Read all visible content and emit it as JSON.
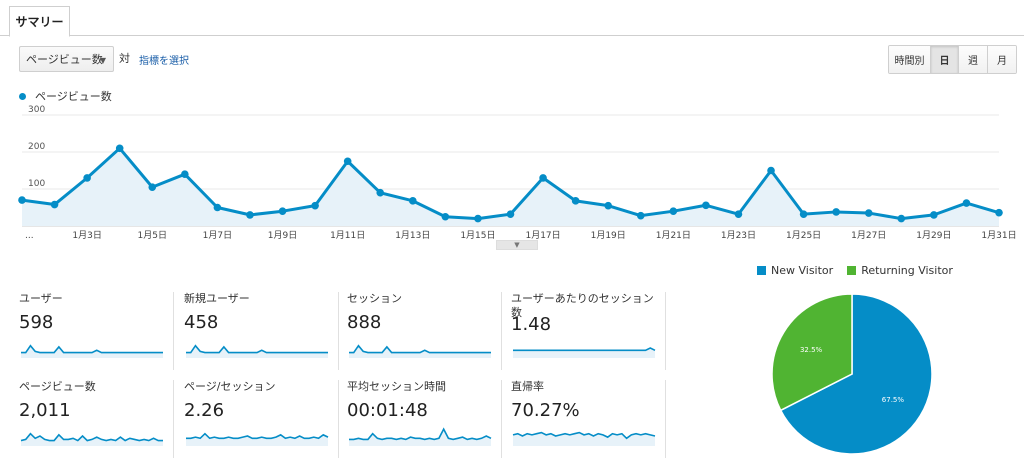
{
  "tabs": {
    "summary": "サマリー"
  },
  "toolbar": {
    "metric_select": "ページビュー数",
    "vs": "対",
    "choose_metric": "指標を選択",
    "periods": [
      "時間別",
      "日",
      "週",
      "月"
    ],
    "active_period": "日"
  },
  "chart_data": [
    {
      "type": "line",
      "series": [
        {
          "name": "ページビュー数",
          "x": [
            "1/1",
            "1/2",
            "1/3",
            "1/4",
            "1/5",
            "1/6",
            "1/7",
            "1/8",
            "1/9",
            "1/10",
            "1/11",
            "1/12",
            "1/13",
            "1/14",
            "1/15",
            "1/16",
            "1/17",
            "1/18",
            "1/19",
            "1/20",
            "1/21",
            "1/22",
            "1/23",
            "1/24",
            "1/25",
            "1/26",
            "1/27",
            "1/28",
            "1/29",
            "1/30",
            "1/31"
          ],
          "values": [
            70,
            58,
            130,
            210,
            105,
            140,
            50,
            30,
            40,
            55,
            175,
            90,
            68,
            25,
            20,
            32,
            130,
            68,
            55,
            28,
            40,
            56,
            32,
            150,
            32,
            38,
            35,
            20,
            30,
            62,
            36
          ]
        }
      ],
      "ylim": [
        0,
        300
      ],
      "yticks": [
        "100",
        "200",
        "300"
      ],
      "xticks": [
        "...",
        "1月3日",
        "1月5日",
        "1月7日",
        "1月9日",
        "1月11日",
        "1月13日",
        "1月15日",
        "1月17日",
        "1月19日",
        "1月21日",
        "1月23日",
        "1月25日",
        "1月27日",
        "1月29日",
        "1月31日"
      ],
      "area": true,
      "grid": true,
      "color": "#058dc7"
    },
    {
      "type": "pie",
      "categories": [
        "New Visitor",
        "Returning Visitor"
      ],
      "values": [
        67.5,
        32.5
      ],
      "labels": [
        "67.5%",
        "32.5%"
      ],
      "colors": [
        "#058dc7",
        "#50b432"
      ],
      "legend": "top"
    }
  ],
  "metrics": [
    {
      "label": "ユーザー",
      "value": "598",
      "spark": [
        3,
        3,
        9,
        4,
        3,
        3,
        3,
        3,
        8,
        3,
        3,
        3,
        3,
        3,
        3,
        3,
        5,
        3,
        3,
        3,
        3,
        3,
        3,
        3,
        3,
        3,
        3,
        3,
        3,
        3,
        3
      ]
    },
    {
      "label": "新規ユーザー",
      "value": "458",
      "spark": [
        3,
        3,
        9,
        4,
        3,
        3,
        3,
        3,
        8,
        3,
        3,
        3,
        3,
        3,
        3,
        3,
        5,
        3,
        3,
        3,
        3,
        3,
        3,
        3,
        3,
        3,
        3,
        3,
        3,
        3,
        3
      ]
    },
    {
      "label": "セッション",
      "value": "888",
      "spark": [
        3,
        3,
        9,
        4,
        3,
        3,
        3,
        3,
        8,
        3,
        3,
        3,
        3,
        3,
        3,
        3,
        5,
        3,
        3,
        3,
        3,
        3,
        3,
        3,
        3,
        3,
        3,
        3,
        3,
        3,
        3
      ]
    },
    {
      "label": "ユーザーあたりのセッション数",
      "value": "1.48",
      "spark": [
        5,
        5,
        5,
        5,
        5,
        5,
        5,
        5,
        5,
        5,
        5,
        5,
        5,
        5,
        5,
        5,
        5,
        5,
        5,
        5,
        5,
        5,
        5,
        5,
        5,
        5,
        5,
        5,
        5,
        7,
        5
      ]
    },
    {
      "label": "ページビュー数",
      "value": "2,011",
      "spark": [
        3,
        4,
        9,
        5,
        7,
        4,
        3,
        3,
        8,
        4,
        4,
        5,
        3,
        7,
        3,
        4,
        6,
        4,
        3,
        4,
        3,
        6,
        3,
        5,
        4,
        3,
        4,
        3,
        5,
        3,
        3
      ]
    },
    {
      "label": "ページ/セッション",
      "value": "2.26",
      "spark": [
        5,
        5,
        6,
        5,
        9,
        5,
        6,
        5,
        5,
        6,
        5,
        5,
        6,
        7,
        5,
        5,
        6,
        5,
        5,
        6,
        8,
        5,
        6,
        5,
        7,
        5,
        5,
        6,
        5,
        8,
        6
      ]
    },
    {
      "label": "平均セッション時間",
      "value": "00:01:48",
      "spark": [
        4,
        4,
        5,
        4,
        4,
        9,
        5,
        4,
        5,
        5,
        4,
        5,
        4,
        6,
        5,
        5,
        4,
        5,
        4,
        5,
        13,
        5,
        4,
        5,
        6,
        4,
        5,
        4,
        5,
        7,
        5
      ]
    },
    {
      "label": "直帰率",
      "value": "70.27%",
      "spark": [
        8,
        9,
        7,
        9,
        8,
        9,
        10,
        8,
        9,
        7,
        8,
        9,
        8,
        9,
        10,
        8,
        9,
        7,
        9,
        8,
        6,
        9,
        8,
        9,
        5,
        8,
        9,
        8,
        9,
        8,
        7
      ]
    }
  ]
}
